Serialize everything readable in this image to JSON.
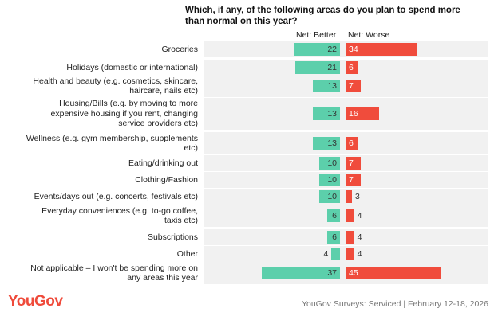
{
  "chart_data": {
    "type": "bar",
    "title": "Which, if any, of the following areas do you plan to spend more than normal on this year?",
    "categories": [
      "Groceries",
      "Holidays (domestic or international)",
      "Health and beauty (e.g. cosmetics, skincare, haircare, nails etc)",
      "Housing/Bills (e.g. by moving to more expensive housing if you rent, changing service providers etc)",
      "Wellness (e.g. gym membership, supplements etc)",
      "Eating/drinking out",
      "Clothing/Fashion",
      "Events/days out (e.g. concerts, festivals etc)",
      "Everyday conveniences (e.g. to-go coffee, taxis etc)",
      "Subscriptions",
      "Other",
      "Not applicable – I won't be spending more on any areas this year"
    ],
    "series": [
      {
        "name": "Net: Better",
        "color": "#5ccfab",
        "values": [
          22,
          21,
          13,
          13,
          13,
          10,
          10,
          10,
          6,
          6,
          4,
          37
        ]
      },
      {
        "name": "Net: Worse",
        "color": "#f04c3c",
        "values": [
          34,
          6,
          7,
          16,
          6,
          7,
          7,
          3,
          4,
          4,
          4,
          45
        ]
      }
    ],
    "brand": "YouGov",
    "source": "YouGov Surveys: Serviced | February 12-18, 2026"
  }
}
